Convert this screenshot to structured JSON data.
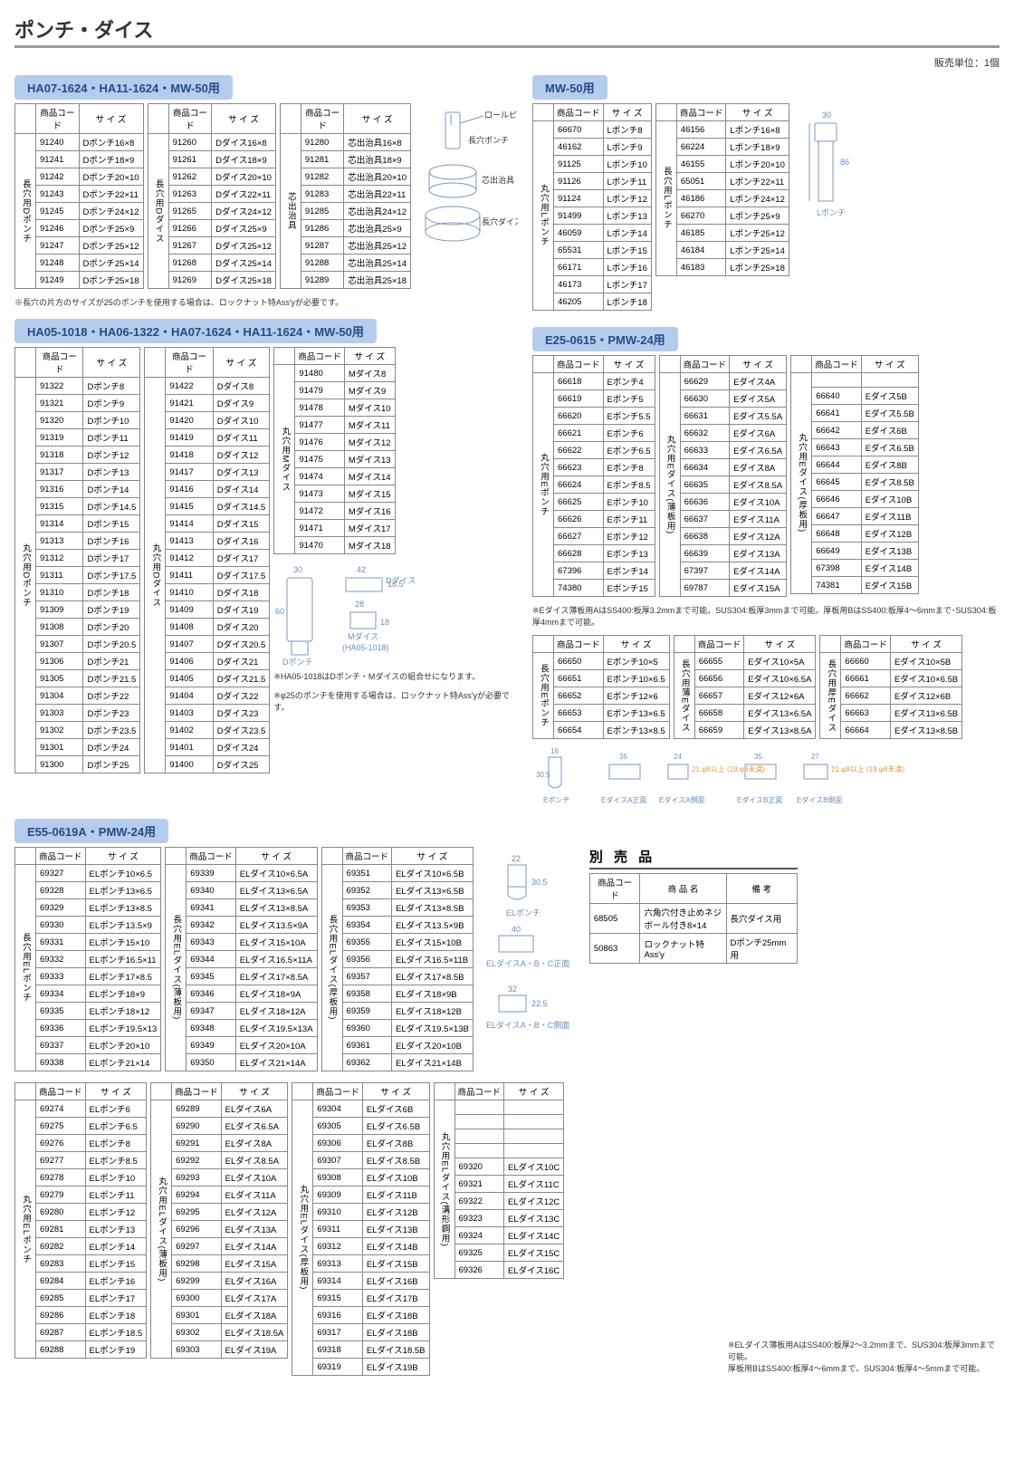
{
  "page_title": "ポンチ・ダイス",
  "sales_unit": "販売単位：1個",
  "headers": {
    "code": "商品コード",
    "size": "サ イ ズ",
    "name": "商 品 名",
    "remark": "備   考"
  },
  "section1": {
    "title": "HA07-1624・HA11-1624・MW-50用",
    "vlabel1": "長穴用Dポンチ",
    "vlabel2": "長穴用Dダイス",
    "vlabel3": "芯出治具",
    "t1": [
      [
        "91240",
        "Dポンチ16×8"
      ],
      [
        "91241",
        "Dポンチ18×9"
      ],
      [
        "91242",
        "Dポンチ20×10"
      ],
      [
        "91243",
        "Dポンチ22×11"
      ],
      [
        "91245",
        "Dポンチ24×12"
      ],
      [
        "91246",
        "Dポンチ25×9"
      ],
      [
        "91247",
        "Dポンチ25×12"
      ],
      [
        "91248",
        "Dポンチ25×14"
      ],
      [
        "91249",
        "Dポンチ25×18"
      ]
    ],
    "t2": [
      [
        "91260",
        "Dダイス16×8"
      ],
      [
        "91261",
        "Dダイス18×9"
      ],
      [
        "91262",
        "Dダイス20×10"
      ],
      [
        "91263",
        "Dダイス22×11"
      ],
      [
        "91265",
        "Dダイス24×12"
      ],
      [
        "91266",
        "Dダイス25×9"
      ],
      [
        "91267",
        "Dダイス25×12"
      ],
      [
        "91268",
        "Dダイス25×14"
      ],
      [
        "91269",
        "Dダイス25×18"
      ]
    ],
    "t3": [
      [
        "91280",
        "芯出治具16×8"
      ],
      [
        "91281",
        "芯出治具18×9"
      ],
      [
        "91282",
        "芯出治具20×10"
      ],
      [
        "91283",
        "芯出治具22×11"
      ],
      [
        "91285",
        "芯出治具24×12"
      ],
      [
        "91286",
        "芯出治具25×9"
      ],
      [
        "91287",
        "芯出治具25×12"
      ],
      [
        "91288",
        "芯出治具25×14"
      ],
      [
        "91289",
        "芯出治具25×18"
      ]
    ],
    "diag_labels": [
      "ロールピン",
      "長穴ポンチ",
      "芯出治具",
      "長穴ダイス"
    ],
    "note": "※長穴の片方のサイズが25のポンチを使用する場合は、ロックナット特Ass'yが必要です。"
  },
  "section2": {
    "title": "MW-50用",
    "vlabel1": "丸穴用Lポンチ",
    "vlabel2": "長穴用Lポンチ",
    "t1": [
      [
        "66670",
        "Lポンチ8"
      ],
      [
        "46162",
        "Lポンチ9"
      ],
      [
        "91125",
        "Lポンチ10"
      ],
      [
        "91126",
        "Lポンチ11"
      ],
      [
        "91124",
        "Lポンチ12"
      ],
      [
        "91499",
        "Lポンチ13"
      ],
      [
        "46059",
        "Lポンチ14"
      ],
      [
        "65531",
        "Lポンチ15"
      ],
      [
        "66171",
        "Lポンチ16"
      ],
      [
        "46173",
        "Lポンチ17"
      ],
      [
        "46205",
        "Lポンチ18"
      ]
    ],
    "t2": [
      [
        "46156",
        "Lポンチ16×8"
      ],
      [
        "66224",
        "Lポンチ18×9"
      ],
      [
        "46155",
        "Lポンチ20×10"
      ],
      [
        "65051",
        "Lポンチ22×11"
      ],
      [
        "46186",
        "Lポンチ24×12"
      ],
      [
        "66270",
        "Lポンチ25×9"
      ],
      [
        "46185",
        "Lポンチ25×12"
      ],
      [
        "46184",
        "Lポンチ25×14"
      ],
      [
        "46183",
        "Lポンチ25×18"
      ]
    ],
    "diag": {
      "w": "30",
      "h": "86",
      "label": "Lポンチ"
    }
  },
  "section3": {
    "title": "HA05-1018・HA06-1322・HA07-1624・HA11-1624・MW-50用",
    "vlabel1": "丸穴用Dポンチ",
    "vlabel2": "丸穴用Dダイス",
    "vlabel3": "丸穴用Mダイス",
    "t1": [
      [
        "91322",
        "Dポンチ8"
      ],
      [
        "91321",
        "Dポンチ9"
      ],
      [
        "91320",
        "Dポンチ10"
      ],
      [
        "91319",
        "Dポンチ11"
      ],
      [
        "91318",
        "Dポンチ12"
      ],
      [
        "91317",
        "Dポンチ13"
      ],
      [
        "91316",
        "Dポンチ14"
      ],
      [
        "91315",
        "Dポンチ14.5"
      ],
      [
        "91314",
        "Dポンチ15"
      ],
      [
        "91313",
        "Dポンチ16"
      ],
      [
        "91312",
        "Dポンチ17"
      ],
      [
        "91311",
        "Dポンチ17.5"
      ],
      [
        "91310",
        "Dポンチ18"
      ],
      [
        "91309",
        "Dポンチ19"
      ],
      [
        "91308",
        "Dポンチ20"
      ],
      [
        "91307",
        "Dポンチ20.5"
      ],
      [
        "91306",
        "Dポンチ21"
      ],
      [
        "91305",
        "Dポンチ21.5"
      ],
      [
        "91304",
        "Dポンチ22"
      ],
      [
        "91303",
        "Dポンチ23"
      ],
      [
        "91302",
        "Dポンチ23.5"
      ],
      [
        "91301",
        "Dポンチ24"
      ],
      [
        "91300",
        "Dポンチ25"
      ]
    ],
    "t2": [
      [
        "91422",
        "Dダイス8"
      ],
      [
        "91421",
        "Dダイス9"
      ],
      [
        "91420",
        "Dダイス10"
      ],
      [
        "91419",
        "Dダイス11"
      ],
      [
        "91418",
        "Dダイス12"
      ],
      [
        "91417",
        "Dダイス13"
      ],
      [
        "91416",
        "Dダイス14"
      ],
      [
        "91415",
        "Dダイス14.5"
      ],
      [
        "91414",
        "Dダイス15"
      ],
      [
        "91413",
        "Dダイス16"
      ],
      [
        "91412",
        "Dダイス17"
      ],
      [
        "91411",
        "Dダイス17.5"
      ],
      [
        "91410",
        "Dダイス18"
      ],
      [
        "91409",
        "Dダイス19"
      ],
      [
        "91408",
        "Dダイス20"
      ],
      [
        "91407",
        "Dダイス20.5"
      ],
      [
        "91406",
        "Dダイス21"
      ],
      [
        "91405",
        "Dダイス21.5"
      ],
      [
        "91404",
        "Dダイス22"
      ],
      [
        "91403",
        "Dダイス23"
      ],
      [
        "91402",
        "Dダイス23.5"
      ],
      [
        "91401",
        "Dダイス24"
      ],
      [
        "91400",
        "Dダイス25"
      ]
    ],
    "t3": [
      [
        "91480",
        "Mダイス8"
      ],
      [
        "91479",
        "Mダイス9"
      ],
      [
        "91478",
        "Mダイス10"
      ],
      [
        "91477",
        "Mダイス11"
      ],
      [
        "91476",
        "Mダイス12"
      ],
      [
        "91475",
        "Mダイス13"
      ],
      [
        "91474",
        "Mダイス14"
      ],
      [
        "91473",
        "Mダイス15"
      ],
      [
        "91472",
        "Mダイス16"
      ],
      [
        "91471",
        "Mダイス17"
      ],
      [
        "91470",
        "Mダイス18"
      ]
    ],
    "diag": {
      "a": "30",
      "b": "42",
      "c": "16.5",
      "d": "60",
      "e": "28",
      "f": "18",
      "labels": [
        "Dダイス",
        "Dポンチ",
        "Mダイス",
        "(HA05-1018)"
      ]
    },
    "note1": "※HA05-1018はDポンチ・Mダイスの組合せになります。",
    "note2": "※φ25のポンチを使用する場合は、ロックナット特Ass'yが必要です。"
  },
  "section4": {
    "title": "E25-0615・PMW-24用",
    "vlabel1": "丸穴用Eポンチ",
    "vlabel2": "丸穴用Eダイス(薄板用)",
    "vlabel3": "丸穴用Eダイス(厚板用)",
    "t1": [
      [
        "66618",
        "Eポンチ4"
      ],
      [
        "66619",
        "Eポンチ5"
      ],
      [
        "66620",
        "Eポンチ5.5"
      ],
      [
        "66621",
        "Eポンチ6"
      ],
      [
        "66622",
        "Eポンチ6.5"
      ],
      [
        "66623",
        "Eポンチ8"
      ],
      [
        "66624",
        "Eポンチ8.5"
      ],
      [
        "66625",
        "Eポンチ10"
      ],
      [
        "66626",
        "Eポンチ11"
      ],
      [
        "66627",
        "Eポンチ12"
      ],
      [
        "66628",
        "Eポンチ13"
      ],
      [
        "67396",
        "Eポンチ14"
      ],
      [
        "74380",
        "Eポンチ15"
      ]
    ],
    "t2": [
      [
        "66629",
        "Eダイス4A"
      ],
      [
        "66630",
        "Eダイス5A"
      ],
      [
        "66631",
        "Eダイス5.5A"
      ],
      [
        "66632",
        "Eダイス6A"
      ],
      [
        "66633",
        "Eダイス6.5A"
      ],
      [
        "66634",
        "Eダイス8A"
      ],
      [
        "66635",
        "Eダイス8.5A"
      ],
      [
        "66636",
        "Eダイス10A"
      ],
      [
        "66637",
        "Eダイス11A"
      ],
      [
        "66638",
        "Eダイス12A"
      ],
      [
        "66639",
        "Eダイス13A"
      ],
      [
        "67397",
        "Eダイス14A"
      ],
      [
        "69787",
        "Eダイス15A"
      ]
    ],
    "t3": [
      [
        "66640",
        "Eダイス5B"
      ],
      [
        "66641",
        "Eダイス5.5B"
      ],
      [
        "66642",
        "Eダイス6B"
      ],
      [
        "66643",
        "Eダイス6.5B"
      ],
      [
        "66644",
        "Eダイス8B"
      ],
      [
        "66645",
        "Eダイス8.5B"
      ],
      [
        "66646",
        "Eダイス10B"
      ],
      [
        "66647",
        "Eダイス11B"
      ],
      [
        "66648",
        "Eダイス12B"
      ],
      [
        "66649",
        "Eダイス13B"
      ],
      [
        "67398",
        "Eダイス14B"
      ],
      [
        "74381",
        "Eダイス15B"
      ]
    ],
    "note": "※Eダイス薄板用AはSS400:板厚3.2mmまで可能。SUS304:板厚3mmまで可能。厚板用BはSS400:板厚4～6mmまで･SUS304:板厚4mmまで可能。",
    "vlabel4": "長穴用Eポンチ",
    "vlabel5": "長穴用薄Eダイス",
    "vlabel6": "長穴用厚Eダイス",
    "t4": [
      [
        "66650",
        "Eポンチ10×5"
      ],
      [
        "66651",
        "Eポンチ10×6.5"
      ],
      [
        "66652",
        "Eポンチ12×6"
      ],
      [
        "66653",
        "Eポンチ13×6.5"
      ],
      [
        "66654",
        "Eポンチ13×8.5"
      ]
    ],
    "t5": [
      [
        "66655",
        "Eダイス10×5A"
      ],
      [
        "66656",
        "Eダイス10×6.5A"
      ],
      [
        "66657",
        "Eダイス12×6A"
      ],
      [
        "66658",
        "Eダイス13×6.5A"
      ],
      [
        "66659",
        "Eダイス13×8.5A"
      ]
    ],
    "t6": [
      [
        "66660",
        "Eダイス10×5B"
      ],
      [
        "66661",
        "Eダイス10×6.5B"
      ],
      [
        "66662",
        "Eダイス12×6B"
      ],
      [
        "66663",
        "Eダイス13×6.5B"
      ],
      [
        "66664",
        "Eダイス13×8.5B"
      ]
    ],
    "diag": {
      "a": "16",
      "b": "30.5",
      "c": "35",
      "d": "24",
      "e": "35",
      "f": "27",
      "labels": [
        "Eポンチ",
        "EダイスA正面",
        "EダイスA側面",
        "EダイスB正面",
        "EダイスB側面"
      ],
      "ann": "21:φ8以上\n(19:φ8未満)"
    }
  },
  "section5": {
    "title": "E55-0619A・PMW-24用",
    "vlabel1": "長穴用ELポンチ",
    "vlabel2": "長穴用ELダイス(薄板用)",
    "vlabel3": "長穴用ELダイス(厚板用)",
    "t1": [
      [
        "69327",
        "ELポンチ10×6.5"
      ],
      [
        "69328",
        "ELポンチ13×6.5"
      ],
      [
        "69329",
        "ELポンチ13×8.5"
      ],
      [
        "69330",
        "ELポンチ13.5×9"
      ],
      [
        "69331",
        "ELポンチ15×10"
      ],
      [
        "69332",
        "ELポンチ16.5×11"
      ],
      [
        "69333",
        "ELポンチ17×8.5"
      ],
      [
        "69334",
        "ELポンチ18×9"
      ],
      [
        "69335",
        "ELポンチ18×12"
      ],
      [
        "69336",
        "ELポンチ19.5×13"
      ],
      [
        "69337",
        "ELポンチ20×10"
      ],
      [
        "69338",
        "ELポンチ21×14"
      ]
    ],
    "t2": [
      [
        "69339",
        "ELダイス10×6.5A"
      ],
      [
        "69340",
        "ELダイス13×6.5A"
      ],
      [
        "69341",
        "ELダイス13×8.5A"
      ],
      [
        "69342",
        "ELダイス13.5×9A"
      ],
      [
        "69343",
        "ELダイス15×10A"
      ],
      [
        "69344",
        "ELダイス16.5×11A"
      ],
      [
        "69345",
        "ELダイス17×8.5A"
      ],
      [
        "69346",
        "ELダイス18×9A"
      ],
      [
        "69347",
        "ELダイス18×12A"
      ],
      [
        "69348",
        "ELダイス19.5×13A"
      ],
      [
        "69349",
        "ELダイス20×10A"
      ],
      [
        "69350",
        "ELダイス21×14A"
      ]
    ],
    "t3": [
      [
        "69351",
        "ELダイス10×6.5B"
      ],
      [
        "69352",
        "ELダイス13×6.5B"
      ],
      [
        "69353",
        "ELダイス13×8.5B"
      ],
      [
        "69354",
        "ELダイス13.5×9B"
      ],
      [
        "69355",
        "ELダイス15×10B"
      ],
      [
        "69356",
        "ELダイス16.5×11B"
      ],
      [
        "69357",
        "ELダイス17×8.5B"
      ],
      [
        "69358",
        "ELダイス18×9B"
      ],
      [
        "69359",
        "ELダイス18×12B"
      ],
      [
        "69360",
        "ELダイス19.5×13B"
      ],
      [
        "69361",
        "ELダイス20×10B"
      ],
      [
        "69362",
        "ELダイス21×14B"
      ]
    ],
    "diag1": {
      "a": "22",
      "b": "30.5",
      "label": "ELポンチ"
    },
    "diag2": {
      "a": "40",
      "label": "ELダイスA・B・C正面"
    },
    "diag3": {
      "a": "32",
      "b": "22.5",
      "label": "ELダイスA・B・C側面"
    },
    "vlabel4": "丸穴用ELポンチ",
    "vlabel5": "丸穴用ELダイス(薄板用)",
    "vlabel6": "丸穴用ELダイス(厚板用)",
    "vlabel7": "丸穴用ELダイス(溝形鋼用)",
    "t4": [
      [
        "69274",
        "ELポンチ6"
      ],
      [
        "69275",
        "ELポンチ6.5"
      ],
      [
        "69276",
        "ELポンチ8"
      ],
      [
        "69277",
        "ELポンチ8.5"
      ],
      [
        "69278",
        "ELポンチ10"
      ],
      [
        "69279",
        "ELポンチ11"
      ],
      [
        "69280",
        "ELポンチ12"
      ],
      [
        "69281",
        "ELポンチ13"
      ],
      [
        "69282",
        "ELポンチ14"
      ],
      [
        "69283",
        "ELポンチ15"
      ],
      [
        "69284",
        "ELポンチ16"
      ],
      [
        "69285",
        "ELポンチ17"
      ],
      [
        "69286",
        "ELポンチ18"
      ],
      [
        "69287",
        "ELポンチ18.5"
      ],
      [
        "69288",
        "ELポンチ19"
      ]
    ],
    "t5": [
      [
        "69289",
        "ELダイス6A"
      ],
      [
        "69290",
        "ELダイス6.5A"
      ],
      [
        "69291",
        "ELダイス8A"
      ],
      [
        "69292",
        "ELダイス8.5A"
      ],
      [
        "69293",
        "ELダイス10A"
      ],
      [
        "69294",
        "ELダイス11A"
      ],
      [
        "69295",
        "ELダイス12A"
      ],
      [
        "69296",
        "ELダイス13A"
      ],
      [
        "69297",
        "ELダイス14A"
      ],
      [
        "69298",
        "ELダイス15A"
      ],
      [
        "69299",
        "ELダイス16A"
      ],
      [
        "69300",
        "ELダイス17A"
      ],
      [
        "69301",
        "ELダイス18A"
      ],
      [
        "69302",
        "ELダイス18.5A"
      ],
      [
        "69303",
        "ELダイス19A"
      ]
    ],
    "t6": [
      [
        "69304",
        "ELダイス6B"
      ],
      [
        "69305",
        "ELダイス6.5B"
      ],
      [
        "69306",
        "ELダイス8B"
      ],
      [
        "69307",
        "ELダイス8.5B"
      ],
      [
        "69308",
        "ELダイス10B"
      ],
      [
        "69309",
        "ELダイス11B"
      ],
      [
        "69310",
        "ELダイス12B"
      ],
      [
        "69311",
        "ELダイス13B"
      ],
      [
        "69312",
        "ELダイス14B"
      ],
      [
        "69313",
        "ELダイス15B"
      ],
      [
        "69314",
        "ELダイス16B"
      ],
      [
        "69315",
        "ELダイス17B"
      ],
      [
        "69316",
        "ELダイス18B"
      ],
      [
        "69317",
        "ELダイス18B"
      ],
      [
        "69318",
        "ELダイス18.5B"
      ],
      [
        "69319",
        "ELダイス19B"
      ]
    ],
    "t7": [
      [
        "69320",
        "ELダイス10C"
      ],
      [
        "69321",
        "ELダイス11C"
      ],
      [
        "69322",
        "ELダイス12C"
      ],
      [
        "69323",
        "ELダイス13C"
      ],
      [
        "69324",
        "ELダイス14C"
      ],
      [
        "69325",
        "ELダイス15C"
      ],
      [
        "69326",
        "ELダイス16C"
      ]
    ],
    "note": "※ELダイス薄板用AはSS400:板厚2～3.2mmまで、SUS304:板厚3mmまで可能。\n厚板用BはSS400:板厚4～6mmまで、SUS304:板厚4～5mmまで可能。"
  },
  "accessories": {
    "title": "別 売 品",
    "rows": [
      [
        "68505",
        "六角穴付き止めネジ\nボール付き8×14",
        "長穴ダイス用"
      ],
      [
        "50863",
        "ロックナット特Ass'y",
        "Dポンチ25mm用"
      ]
    ]
  }
}
